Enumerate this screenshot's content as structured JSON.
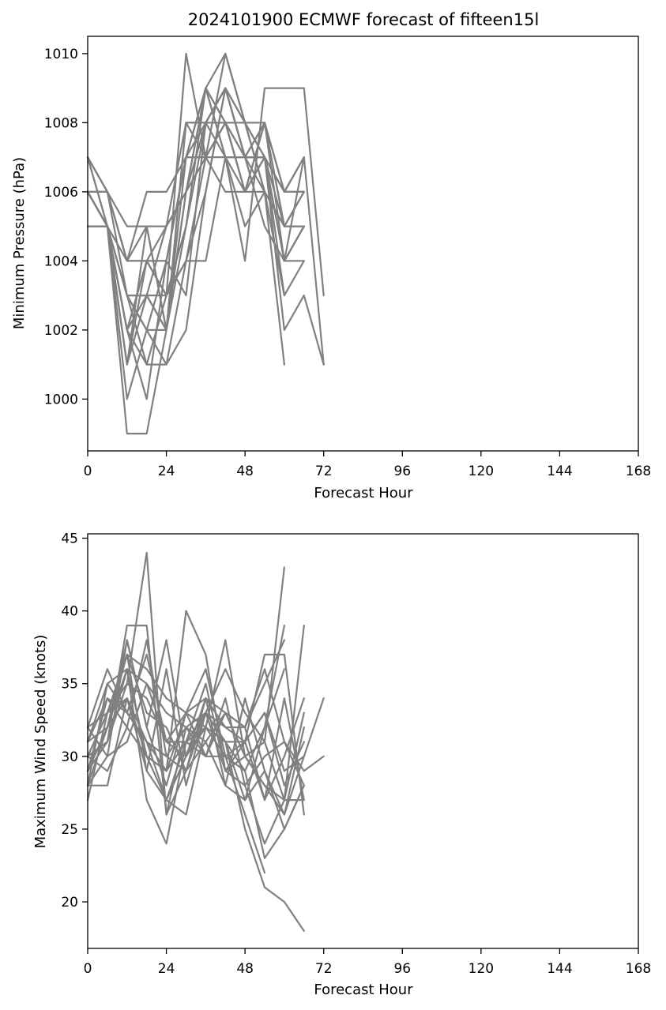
{
  "chart_data": [
    {
      "type": "line",
      "title": "2024101900 ECMWF forecast of fifteen15l",
      "xlabel": "Forecast Hour",
      "ylabel": "Minimum Pressure (hPa)",
      "xlim": [
        0,
        168
      ],
      "ylim": [
        998.5,
        1010.5
      ],
      "xticks": [
        0,
        24,
        48,
        72,
        96,
        120,
        144,
        168
      ],
      "yticks": [
        1000,
        1002,
        1004,
        1006,
        1008,
        1010
      ],
      "line_color": "#808080",
      "x": [
        0,
        6,
        12,
        18,
        24,
        30,
        36,
        42,
        48,
        54,
        60,
        66,
        72
      ],
      "series": [
        {
          "values": [
            1007,
            1005,
            1003,
            1001,
            1003,
            1010,
            1007,
            1010,
            1008,
            1006,
            1003,
            1004,
            null
          ]
        },
        {
          "values": [
            1006,
            1006,
            1004,
            1005,
            1002,
            1007,
            1009,
            1007,
            1004,
            1009,
            1009,
            1009,
            1003
          ]
        },
        {
          "values": [
            1006,
            1005,
            1002,
            1004,
            1003,
            1005,
            1008,
            1009,
            1007,
            1008,
            1006,
            1006,
            null
          ]
        },
        {
          "values": [
            1005,
            1005,
            1001,
            1003,
            1002,
            1006,
            1009,
            1008,
            1006,
            1007,
            1004,
            1007,
            1001
          ]
        },
        {
          "values": [
            1007,
            1006,
            1005,
            1005,
            1005,
            1008,
            1008,
            1009,
            1007,
            1008,
            1005,
            1005,
            null
          ]
        },
        {
          "values": [
            1006,
            1005,
            1003,
            1002,
            1004,
            1007,
            1007,
            1008,
            1008,
            1007,
            1002,
            1003,
            1001
          ]
        },
        {
          "values": [
            1006,
            1005,
            1001,
            1004,
            1003,
            1004,
            1004,
            1007,
            1007,
            1006,
            1001,
            null,
            null
          ]
        },
        {
          "values": [
            1006,
            1006,
            1004,
            1006,
            1006,
            1007,
            1007,
            1006,
            1006,
            1007,
            1005,
            1006,
            null
          ]
        },
        {
          "values": [
            1007,
            1005,
            1002,
            1000,
            1004,
            1003,
            1008,
            1009,
            1007,
            1007,
            1004,
            1005,
            null
          ]
        },
        {
          "values": [
            1005,
            1005,
            1003,
            1003,
            1002,
            1008,
            1007,
            1008,
            1006,
            1008,
            1006,
            1007,
            null
          ]
        },
        {
          "values": [
            1006,
            1005,
            1000,
            1002,
            1001,
            1002,
            1006,
            1009,
            1008,
            1007,
            1003,
            null,
            null
          ]
        },
        {
          "values": [
            1005,
            1005,
            1002,
            1004,
            1004,
            1007,
            1009,
            1007,
            1007,
            1005,
            1004,
            1005,
            null
          ]
        },
        {
          "values": [
            1006,
            1005,
            999,
            999,
            1002,
            1005,
            1009,
            1010,
            1008,
            1006,
            1005,
            null,
            null
          ]
        },
        {
          "values": [
            1007,
            1006,
            1004,
            1004,
            1005,
            1006,
            1008,
            1008,
            1007,
            1007,
            1006,
            1007,
            null
          ]
        },
        {
          "values": [
            1006,
            1005,
            1003,
            1002,
            1002,
            1006,
            1007,
            1008,
            1006,
            1008,
            1004,
            1004,
            null
          ]
        },
        {
          "values": [
            1006,
            1005,
            1002,
            1001,
            1001,
            1004,
            1007,
            1007,
            1005,
            1006,
            1005,
            1006,
            null
          ]
        },
        {
          "values": [
            1005,
            1005,
            1004,
            1004,
            1004,
            1007,
            1008,
            1009,
            1008,
            1008,
            1005,
            1005,
            null
          ]
        },
        {
          "values": [
            1006,
            1005,
            1001,
            1005,
            1002,
            1008,
            1008,
            1007,
            1006,
            1006,
            1003,
            null,
            null
          ]
        },
        {
          "values": [
            1007,
            1006,
            1003,
            1003,
            1005,
            1006,
            1009,
            1008,
            1007,
            1007,
            1006,
            1006,
            null
          ]
        },
        {
          "values": [
            1006,
            1005,
            1002,
            1003,
            1003,
            1004,
            1006,
            1009,
            1007,
            1007,
            1004,
            1005,
            null
          ]
        }
      ]
    },
    {
      "type": "line",
      "title": "",
      "xlabel": "Forecast Hour",
      "ylabel": "Maximum Wind Speed (knots)",
      "xlim": [
        0,
        168
      ],
      "ylim": [
        16.8,
        45.3
      ],
      "xticks": [
        0,
        24,
        48,
        72,
        96,
        120,
        144,
        168
      ],
      "yticks": [
        20,
        25,
        30,
        35,
        40,
        45
      ],
      "line_color": "#808080",
      "x": [
        0,
        6,
        12,
        18,
        24,
        30,
        36,
        42,
        48,
        54,
        60,
        66,
        72
      ],
      "series": [
        {
          "values": [
            27,
            33,
            35,
            44,
            26,
            32,
            33,
            31,
            25,
            21,
            20,
            18,
            null
          ]
        },
        {
          "values": [
            28,
            28,
            34,
            30,
            29,
            40,
            37,
            29,
            31,
            37,
            37,
            26,
            null
          ]
        },
        {
          "values": [
            30,
            31,
            39,
            39,
            26,
            29,
            33,
            31,
            29,
            23,
            25,
            28,
            null
          ]
        },
        {
          "values": [
            32,
            36,
            33,
            31,
            27,
            30,
            32,
            38,
            30,
            31,
            43,
            null,
            null
          ]
        },
        {
          "values": [
            29,
            32,
            37,
            36,
            34,
            33,
            30,
            30,
            31,
            27,
            30,
            34,
            null
          ]
        },
        {
          "values": [
            31,
            35,
            36,
            27,
            24,
            31,
            33,
            36,
            33,
            31,
            27,
            39,
            null
          ]
        },
        {
          "values": [
            30,
            29,
            32,
            38,
            30,
            29,
            31,
            28,
            34,
            29,
            26,
            30,
            null
          ]
        },
        {
          "values": [
            28,
            30,
            38,
            32,
            28,
            33,
            34,
            33,
            32,
            36,
            31,
            28,
            null
          ]
        },
        {
          "values": [
            29,
            34,
            33,
            37,
            31,
            31,
            35,
            29,
            30,
            28,
            27,
            33,
            null
          ]
        },
        {
          "values": [
            31,
            32,
            36,
            30,
            27,
            26,
            32,
            31,
            27,
            32,
            39,
            null,
            null
          ]
        },
        {
          "values": [
            30,
            33,
            34,
            29,
            36,
            28,
            33,
            32,
            31,
            33,
            29,
            30,
            34
          ]
        },
        {
          "values": [
            29,
            31,
            35,
            34,
            31,
            33,
            36,
            30,
            26,
            22,
            null,
            null,
            null
          ]
        },
        {
          "values": [
            28,
            35,
            33,
            31,
            29,
            31,
            30,
            34,
            28,
            30,
            31,
            29,
            30
          ]
        },
        {
          "values": [
            30,
            33,
            37,
            33,
            32,
            29,
            34,
            32,
            32,
            35,
            38,
            null,
            null
          ]
        },
        {
          "values": [
            32,
            30,
            31,
            35,
            33,
            32,
            31,
            33,
            30,
            28,
            26,
            32,
            null
          ]
        },
        {
          "values": [
            29,
            32,
            38,
            32,
            38,
            30,
            33,
            29,
            28,
            24,
            27,
            27,
            null
          ]
        },
        {
          "values": [
            31,
            34,
            32,
            30,
            29,
            33,
            32,
            31,
            31,
            33,
            28,
            31,
            null
          ]
        },
        {
          "values": [
            30,
            31,
            36,
            35,
            31,
            30,
            34,
            28,
            27,
            29,
            25,
            28,
            null
          ]
        },
        {
          "values": [
            28,
            32,
            34,
            31,
            30,
            32,
            30,
            33,
            32,
            27,
            34,
            27,
            null
          ]
        },
        {
          "values": [
            32,
            33,
            37,
            29,
            27,
            31,
            32,
            30,
            29,
            32,
            36,
            null,
            null
          ]
        }
      ]
    }
  ]
}
